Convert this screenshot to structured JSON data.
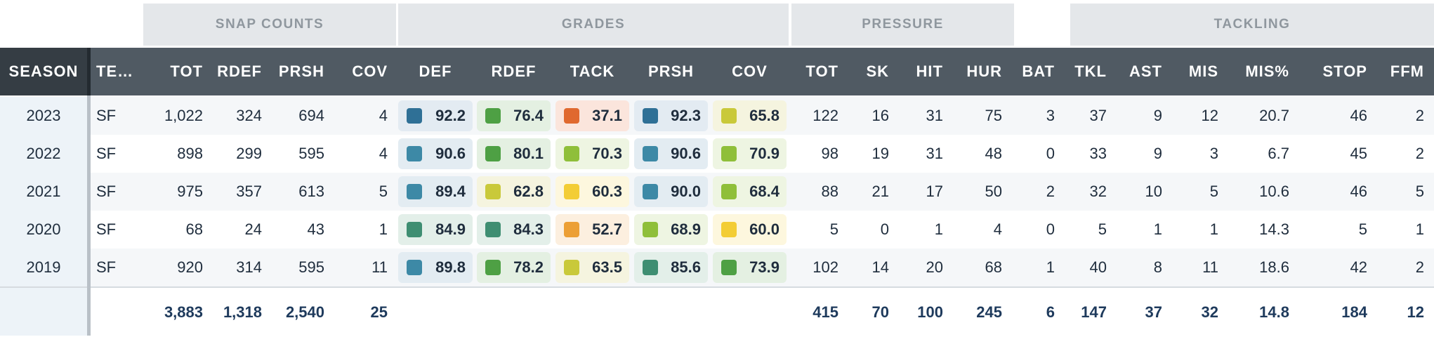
{
  "groups": [
    {
      "key": "snap",
      "label": "SNAP COUNTS"
    },
    {
      "key": "grades",
      "label": "GRADES"
    },
    {
      "key": "pressure",
      "label": "PRESSURE"
    },
    {
      "key": "tackling",
      "label": "TACKLING"
    }
  ],
  "columns": [
    {
      "key": "season",
      "label": "SEASON"
    },
    {
      "key": "team",
      "label": "TE…"
    },
    {
      "key": "snap_tot",
      "label": "TOT"
    },
    {
      "key": "snap_rdef",
      "label": "RDEF"
    },
    {
      "key": "snap_prsh",
      "label": "PRSH"
    },
    {
      "key": "snap_cov",
      "label": "COV"
    },
    {
      "key": "grade_def",
      "label": "DEF"
    },
    {
      "key": "grade_rdef",
      "label": "RDEF"
    },
    {
      "key": "grade_tack",
      "label": "TACK"
    },
    {
      "key": "grade_prsh",
      "label": "PRSH"
    },
    {
      "key": "grade_cov",
      "label": "COV"
    },
    {
      "key": "pr_tot",
      "label": "TOT"
    },
    {
      "key": "sk",
      "label": "SK"
    },
    {
      "key": "hit",
      "label": "HIT"
    },
    {
      "key": "hur",
      "label": "HUR"
    },
    {
      "key": "bat",
      "label": "BAT"
    },
    {
      "key": "tkl",
      "label": "TKL"
    },
    {
      "key": "ast",
      "label": "AST"
    },
    {
      "key": "mis",
      "label": "MIS"
    },
    {
      "key": "mis_pct",
      "label": "MIS%"
    },
    {
      "key": "stop",
      "label": "STOP"
    },
    {
      "key": "ffm",
      "label": "FFM"
    }
  ],
  "rows": [
    {
      "season": "2023",
      "team": "SF",
      "snap_tot": "1,022",
      "snap_rdef": "324",
      "snap_prsh": "694",
      "snap_cov": "4",
      "grade_def": "92.2",
      "grade_rdef": "76.4",
      "grade_tack": "37.1",
      "grade_prsh": "92.3",
      "grade_cov": "65.8",
      "pr_tot": "122",
      "sk": "16",
      "hit": "31",
      "hur": "75",
      "bat": "3",
      "tkl": "37",
      "ast": "9",
      "mis": "12",
      "mis_pct": "20.7",
      "stop": "46",
      "ffm": "2"
    },
    {
      "season": "2022",
      "team": "SF",
      "snap_tot": "898",
      "snap_rdef": "299",
      "snap_prsh": "595",
      "snap_cov": "4",
      "grade_def": "90.6",
      "grade_rdef": "80.1",
      "grade_tack": "70.3",
      "grade_prsh": "90.6",
      "grade_cov": "70.9",
      "pr_tot": "98",
      "sk": "19",
      "hit": "31",
      "hur": "48",
      "bat": "0",
      "tkl": "33",
      "ast": "9",
      "mis": "3",
      "mis_pct": "6.7",
      "stop": "45",
      "ffm": "2"
    },
    {
      "season": "2021",
      "team": "SF",
      "snap_tot": "975",
      "snap_rdef": "357",
      "snap_prsh": "613",
      "snap_cov": "5",
      "grade_def": "89.4",
      "grade_rdef": "62.8",
      "grade_tack": "60.3",
      "grade_prsh": "90.0",
      "grade_cov": "68.4",
      "pr_tot": "88",
      "sk": "21",
      "hit": "17",
      "hur": "50",
      "bat": "2",
      "tkl": "32",
      "ast": "10",
      "mis": "5",
      "mis_pct": "10.6",
      "stop": "46",
      "ffm": "5"
    },
    {
      "season": "2020",
      "team": "SF",
      "snap_tot": "68",
      "snap_rdef": "24",
      "snap_prsh": "43",
      "snap_cov": "1",
      "grade_def": "84.9",
      "grade_rdef": "84.3",
      "grade_tack": "52.7",
      "grade_prsh": "68.9",
      "grade_cov": "60.0",
      "pr_tot": "5",
      "sk": "0",
      "hit": "1",
      "hur": "4",
      "bat": "0",
      "tkl": "5",
      "ast": "1",
      "mis": "1",
      "mis_pct": "14.3",
      "stop": "5",
      "ffm": "1"
    },
    {
      "season": "2019",
      "team": "SF",
      "snap_tot": "920",
      "snap_rdef": "314",
      "snap_prsh": "595",
      "snap_cov": "11",
      "grade_def": "89.8",
      "grade_rdef": "78.2",
      "grade_tack": "63.5",
      "grade_prsh": "85.6",
      "grade_cov": "73.9",
      "pr_tot": "102",
      "sk": "14",
      "hit": "20",
      "hur": "68",
      "bat": "1",
      "tkl": "40",
      "ast": "8",
      "mis": "11",
      "mis_pct": "18.6",
      "stop": "42",
      "ffm": "2"
    }
  ],
  "totals": {
    "snap_tot": "3,883",
    "snap_rdef": "1,318",
    "snap_prsh": "2,540",
    "snap_cov": "25",
    "pr_tot": "415",
    "sk": "70",
    "hit": "100",
    "hur": "245",
    "bat": "6",
    "tkl": "147",
    "ast": "37",
    "mis": "32",
    "mis_pct": "14.8",
    "stop": "184",
    "ffm": "12"
  },
  "grade_colors": {
    "elite_blue": "#2f7096",
    "high_blue": "#3d89a6",
    "teal": "#3f8e72",
    "green": "#4ea044",
    "lime": "#8fbf3a",
    "yellow_green": "#c9c93a",
    "yellow": "#f3cd35",
    "orange": "#ec9f35",
    "red_orange": "#e0692f"
  },
  "grade_cells": [
    [
      "elite_blue",
      "green",
      "red_orange",
      "elite_blue",
      "yellow_green"
    ],
    [
      "high_blue",
      "green",
      "lime",
      "high_blue",
      "lime"
    ],
    [
      "high_blue",
      "yellow_green",
      "yellow",
      "high_blue",
      "lime"
    ],
    [
      "teal",
      "teal",
      "orange",
      "lime",
      "yellow"
    ],
    [
      "high_blue",
      "green",
      "yellow_green",
      "teal",
      "green"
    ]
  ],
  "grade_bg": {
    "elite_blue": "#e3ebf2",
    "high_blue": "#e3ecf2",
    "teal": "#e3efe9",
    "green": "#e4f0e2",
    "lime": "#eef5e2",
    "yellow_green": "#f5f4df",
    "yellow": "#fdf7de",
    "orange": "#fcefdf",
    "red_orange": "#fbe5dc"
  }
}
